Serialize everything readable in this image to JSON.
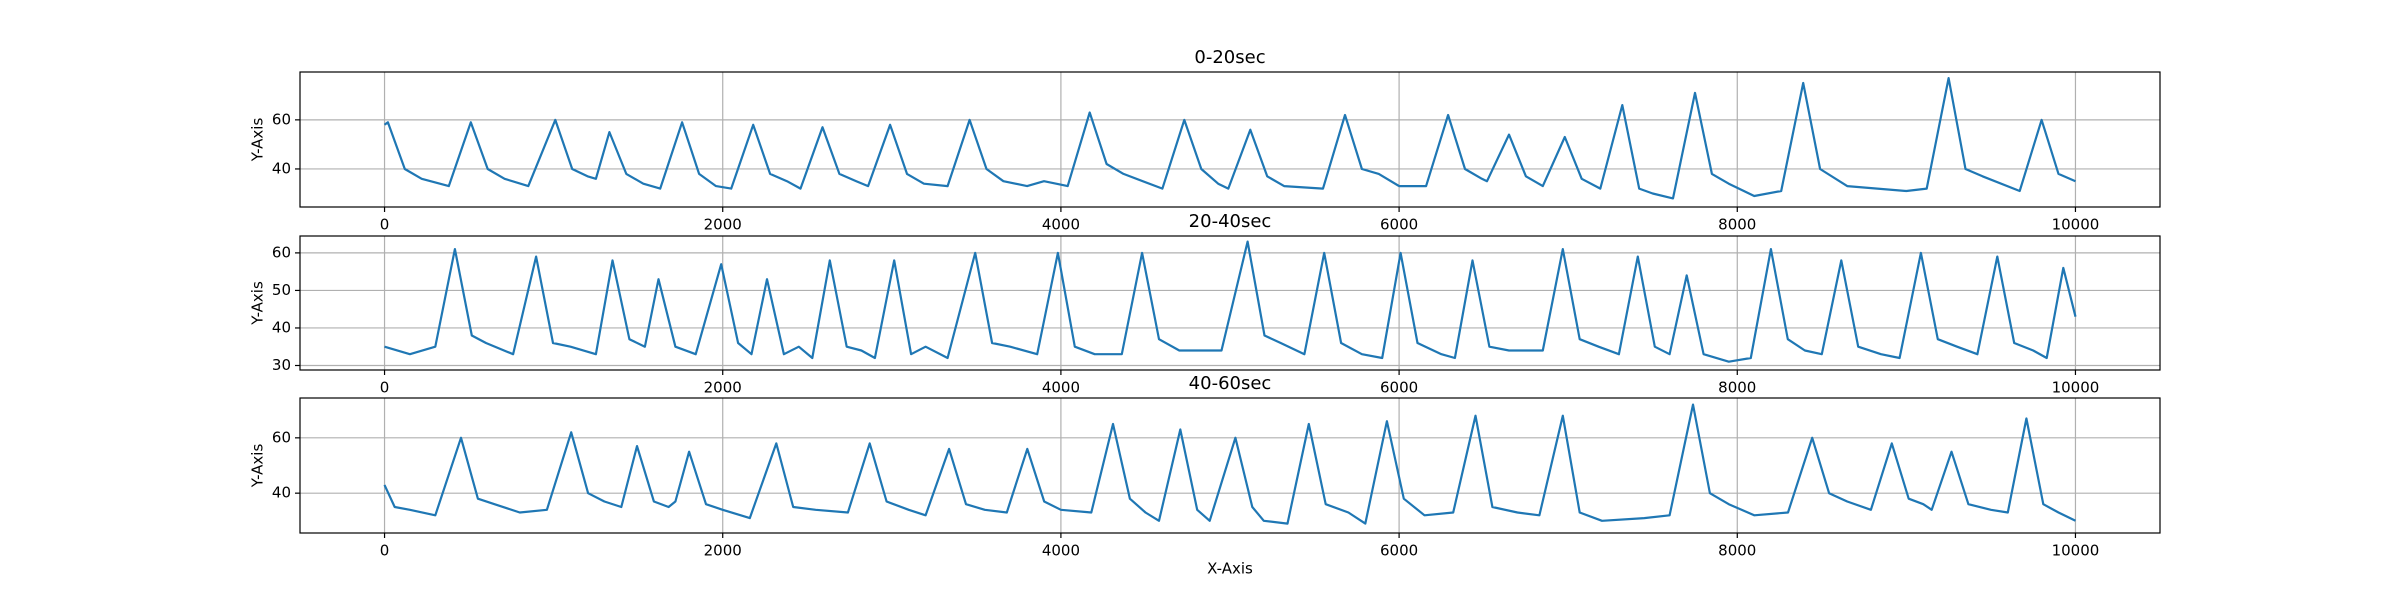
{
  "chart_data": [
    {
      "type": "line",
      "title": "0-20sec",
      "y_label": "Y-Axis",
      "color": "#1f77b4",
      "grid": true,
      "xlim": [
        -500,
        10500
      ],
      "xticks": [
        0,
        2000,
        4000,
        6000,
        8000,
        10000
      ],
      "ylim": [
        24.5,
        79.5
      ],
      "yticks": [
        40,
        60
      ],
      "x": [
        0,
        20,
        120,
        220,
        380,
        510,
        610,
        710,
        850,
        1010,
        1110,
        1200,
        1250,
        1330,
        1430,
        1530,
        1630,
        1760,
        1860,
        1960,
        2050,
        2180,
        2280,
        2380,
        2460,
        2590,
        2690,
        2790,
        2860,
        2990,
        3090,
        3190,
        3330,
        3460,
        3560,
        3660,
        3800,
        3900,
        4040,
        4170,
        4270,
        4370,
        4600,
        4730,
        4830,
        4930,
        4990,
        5120,
        5220,
        5320,
        5550,
        5680,
        5780,
        5880,
        6000,
        6160,
        6290,
        6390,
        6490,
        6520,
        6650,
        6750,
        6850,
        6980,
        7080,
        7190,
        7320,
        7420,
        7500,
        7620,
        7750,
        7850,
        7950,
        8100,
        8260,
        8390,
        8490,
        8650,
        9000,
        9120,
        9250,
        9350,
        9450,
        9670,
        9800,
        9900,
        10000
      ],
      "values": [
        58,
        59,
        40,
        36,
        33,
        59,
        40,
        36,
        33,
        60,
        40,
        37,
        36,
        55,
        38,
        34,
        32,
        59,
        38,
        33,
        32,
        58,
        38,
        35,
        32,
        57,
        38,
        35,
        33,
        58,
        38,
        34,
        33,
        60,
        40,
        35,
        33,
        35,
        33,
        63,
        42,
        38,
        32,
        60,
        40,
        34,
        32,
        56,
        37,
        33,
        32,
        62,
        40,
        38,
        33,
        33,
        62,
        40,
        36,
        35,
        54,
        37,
        33,
        53,
        36,
        32,
        66,
        32,
        30,
        28,
        71,
        38,
        34,
        29,
        31,
        75,
        40,
        33,
        31,
        32,
        77,
        40,
        37,
        31,
        60,
        38,
        35
      ]
    },
    {
      "type": "line",
      "title": "20-40sec",
      "y_label": "Y-Axis",
      "color": "#1f77b4",
      "grid": true,
      "xlim": [
        -500,
        10500
      ],
      "xticks": [
        0,
        2000,
        4000,
        6000,
        8000,
        10000
      ],
      "ylim": [
        28.8,
        64.5
      ],
      "yticks": [
        30,
        40,
        50,
        60
      ],
      "x": [
        0,
        150,
        300,
        416,
        516,
        600,
        760,
        896,
        996,
        1100,
        1250,
        1348,
        1448,
        1540,
        1620,
        1720,
        1840,
        1991,
        2091,
        2170,
        2262,
        2362,
        2450,
        2530,
        2633,
        2733,
        2820,
        2900,
        3014,
        3114,
        3200,
        3330,
        3493,
        3593,
        3700,
        3860,
        3982,
        4082,
        4200,
        4360,
        4480,
        4580,
        4700,
        4950,
        5104,
        5204,
        5300,
        5440,
        5557,
        5657,
        5780,
        5900,
        6009,
        6109,
        6250,
        6330,
        6434,
        6534,
        6650,
        6850,
        6968,
        7068,
        7180,
        7300,
        7412,
        7512,
        7600,
        7701,
        7801,
        7950,
        8080,
        8199,
        8299,
        8400,
        8500,
        8615,
        8715,
        8850,
        8960,
        9086,
        9186,
        9300,
        9420,
        9538,
        9638,
        9750,
        9830,
        9928,
        10000
      ],
      "values": [
        35,
        33,
        35,
        61,
        38,
        36,
        33,
        59,
        36,
        35,
        33,
        58,
        37,
        35,
        53,
        35,
        33,
        57,
        36,
        33,
        53,
        33,
        35,
        32,
        58,
        35,
        34,
        32,
        58,
        33,
        35,
        32,
        60,
        36,
        35,
        33,
        60,
        35,
        33,
        33,
        60,
        37,
        34,
        34,
        63,
        38,
        36,
        33,
        60,
        36,
        33,
        32,
        60,
        36,
        33,
        32,
        58,
        35,
        34,
        34,
        61,
        37,
        35,
        33,
        59,
        35,
        33,
        54,
        33,
        31,
        32,
        61,
        37,
        34,
        33,
        58,
        35,
        33,
        32,
        60,
        37,
        35,
        33,
        59,
        36,
        34,
        32,
        56,
        43
      ]
    },
    {
      "type": "line",
      "title": "40-60sec",
      "x_label": "X-Axis",
      "y_label": "Y-Axis",
      "color": "#1f77b4",
      "grid": true,
      "xlim": [
        -500,
        10500
      ],
      "xticks": [
        0,
        2000,
        4000,
        6000,
        8000,
        10000
      ],
      "ylim": [
        25.6,
        74.4
      ],
      "yticks": [
        40,
        60
      ],
      "x": [
        0,
        60,
        150,
        300,
        452,
        552,
        650,
        800,
        960,
        1104,
        1204,
        1300,
        1400,
        1493,
        1593,
        1680,
        1720,
        1801,
        1901,
        2000,
        2160,
        2317,
        2417,
        2550,
        2740,
        2869,
        2969,
        3100,
        3200,
        3339,
        3439,
        3550,
        3680,
        3801,
        3901,
        4000,
        4180,
        4308,
        4408,
        4500,
        4580,
        4706,
        4806,
        4880,
        5032,
        5132,
        5200,
        5340,
        5466,
        5566,
        5700,
        5800,
        5928,
        6028,
        6150,
        6320,
        6452,
        6552,
        6700,
        6830,
        6968,
        7068,
        7200,
        7450,
        7600,
        7738,
        7838,
        7950,
        8100,
        8300,
        8443,
        8543,
        8650,
        8790,
        8914,
        9014,
        9100,
        9150,
        9267,
        9367,
        9500,
        9600,
        9710,
        9810,
        9900,
        10000
      ],
      "values": [
        43,
        35,
        34,
        32,
        60,
        38,
        36,
        33,
        34,
        62,
        40,
        37,
        35,
        57,
        37,
        35,
        37,
        55,
        36,
        34,
        31,
        58,
        35,
        34,
        33,
        58,
        37,
        34,
        32,
        56,
        36,
        34,
        33,
        56,
        37,
        34,
        33,
        65,
        38,
        33,
        30,
        63,
        34,
        30,
        60,
        35,
        30,
        29,
        65,
        36,
        33,
        29,
        66,
        38,
        32,
        33,
        68,
        35,
        33,
        32,
        68,
        33,
        30,
        31,
        32,
        72,
        40,
        36,
        32,
        33,
        60,
        40,
        37,
        34,
        58,
        38,
        36,
        34,
        55,
        36,
        34,
        33,
        67,
        36,
        33,
        30
      ]
    }
  ]
}
